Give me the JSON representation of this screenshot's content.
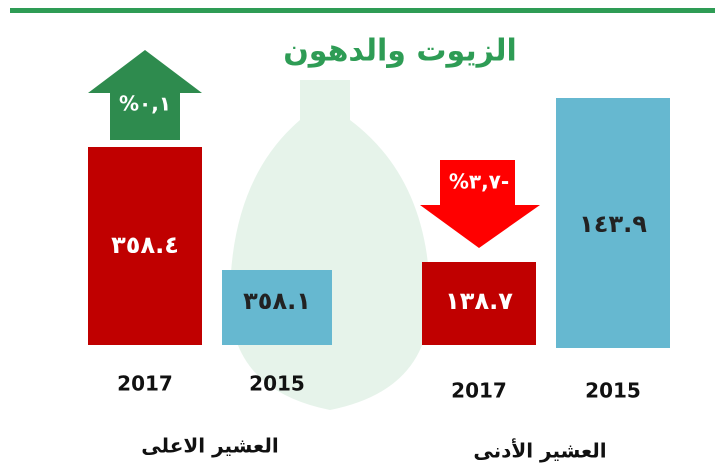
{
  "title": "الزيوت والدهون",
  "groups": [
    {
      "label": "العشير الاعلى",
      "change": "%٠,١",
      "bars": [
        {
          "year": "2017",
          "value": "٣٥٨.٤"
        },
        {
          "year": "2015",
          "value": "٣٥٨.١"
        }
      ]
    },
    {
      "label": "العشير الأدنى",
      "change": "%٣,٧-",
      "bars": [
        {
          "year": "2017",
          "value": "١٣٨.٧"
        },
        {
          "year": "2015",
          "value": "١٤٣.٩"
        }
      ]
    }
  ]
}
